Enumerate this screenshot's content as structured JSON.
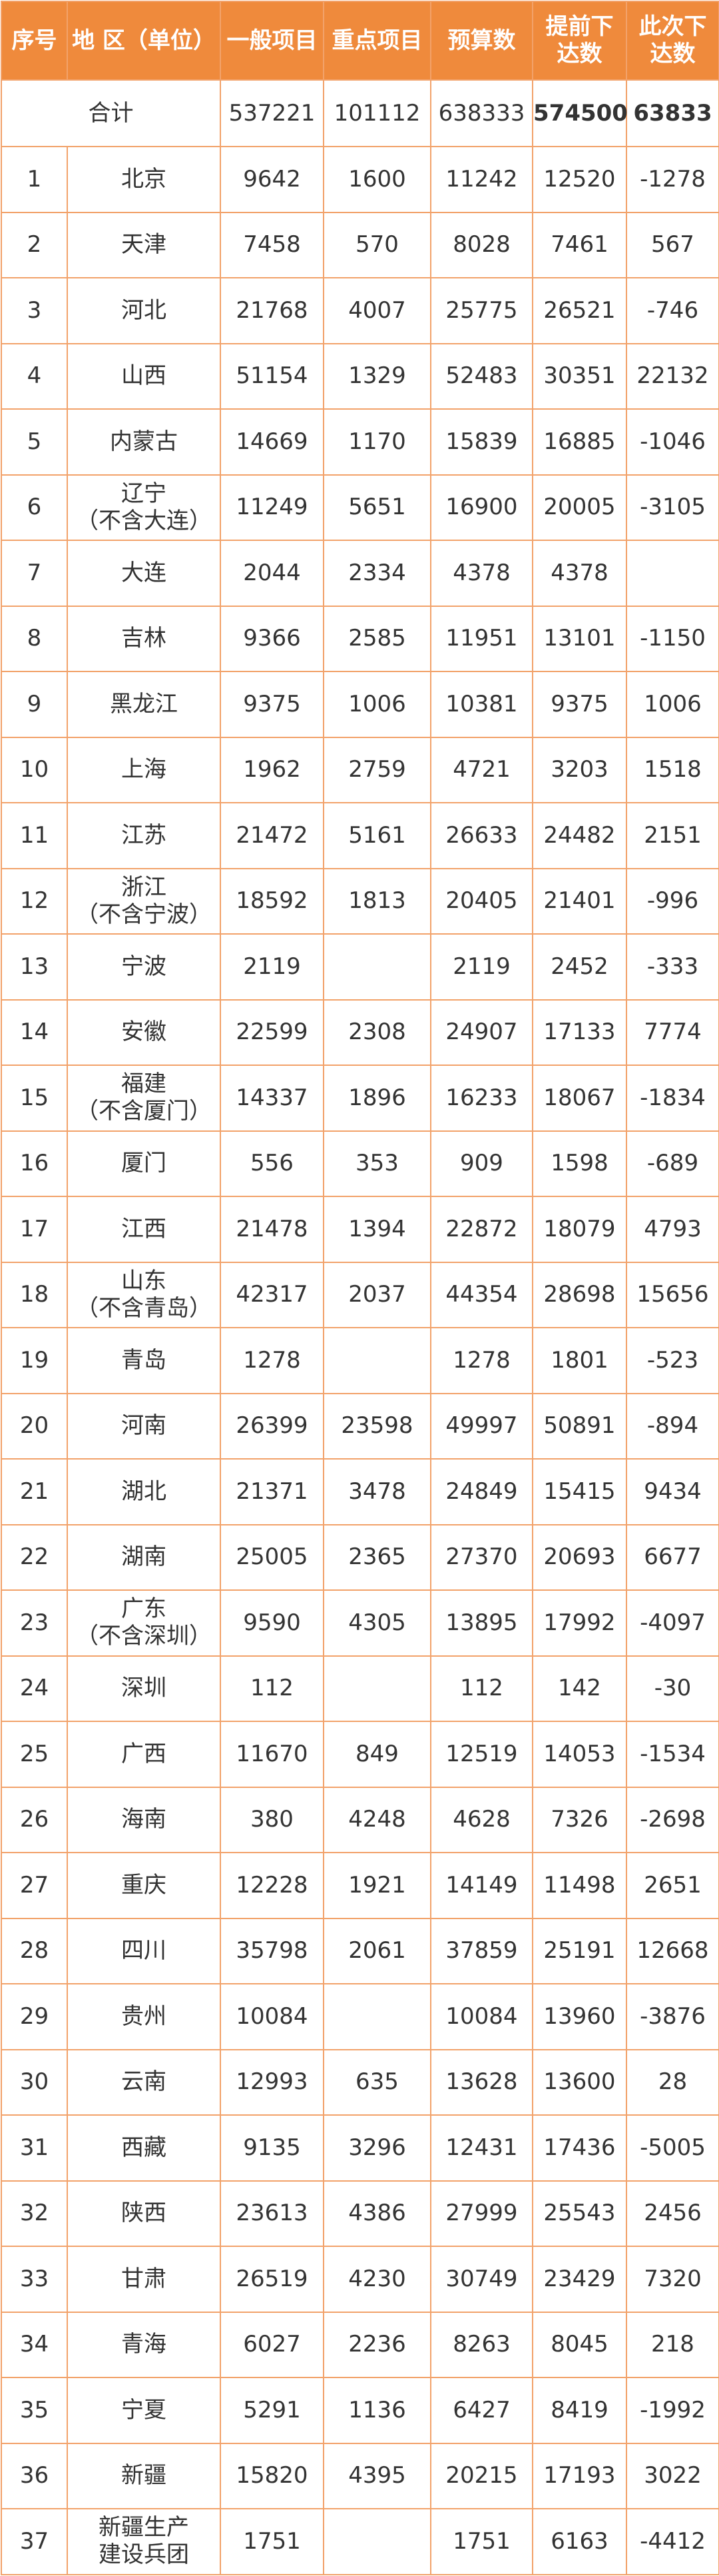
{
  "table": {
    "header": [
      "序号",
      "地 区（单位）",
      "一般项目",
      "重点项目",
      "预算数",
      [
        "提前下",
        "达数"
      ],
      [
        "此次下",
        "达数"
      ]
    ],
    "total": {
      "label": "合计",
      "values": [
        537221,
        101112,
        638333,
        574500,
        63833
      ]
    },
    "rows": [
      [
        1,
        [
          "北京"
        ],
        9642,
        1600,
        11242,
        12520,
        -1278
      ],
      [
        2,
        [
          "天津"
        ],
        7458,
        570,
        8028,
        7461,
        567
      ],
      [
        3,
        [
          "河北"
        ],
        21768,
        4007,
        25775,
        26521,
        -746
      ],
      [
        4,
        [
          "山西"
        ],
        51154,
        1329,
        52483,
        30351,
        22132
      ],
      [
        5,
        [
          "内蒙古"
        ],
        14669,
        1170,
        15839,
        16885,
        -1046
      ],
      [
        6,
        [
          "辽宁",
          "（不含大连）"
        ],
        11249,
        5651,
        16900,
        20005,
        -3105
      ],
      [
        7,
        [
          "大连"
        ],
        2044,
        2334,
        4378,
        4378,
        null
      ],
      [
        8,
        [
          "吉林"
        ],
        9366,
        2585,
        11951,
        13101,
        -1150
      ],
      [
        9,
        [
          "黑龙江"
        ],
        9375,
        1006,
        10381,
        9375,
        1006
      ],
      [
        10,
        [
          "上海"
        ],
        1962,
        2759,
        4721,
        3203,
        1518
      ],
      [
        11,
        [
          "江苏"
        ],
        21472,
        5161,
        26633,
        24482,
        2151
      ],
      [
        12,
        [
          "浙江",
          "（不含宁波）"
        ],
        18592,
        1813,
        20405,
        21401,
        -996
      ],
      [
        13,
        [
          "宁波"
        ],
        2119,
        null,
        2119,
        2452,
        -333
      ],
      [
        14,
        [
          "安徽"
        ],
        22599,
        2308,
        24907,
        17133,
        7774
      ],
      [
        15,
        [
          "福建",
          "（不含厦门）"
        ],
        14337,
        1896,
        16233,
        18067,
        -1834
      ],
      [
        16,
        [
          "厦门"
        ],
        556,
        353,
        909,
        1598,
        -689
      ],
      [
        17,
        [
          "江西"
        ],
        21478,
        1394,
        22872,
        18079,
        4793
      ],
      [
        18,
        [
          "山东",
          "（不含青岛）"
        ],
        42317,
        2037,
        44354,
        28698,
        15656
      ],
      [
        19,
        [
          "青岛"
        ],
        1278,
        null,
        1278,
        1801,
        -523
      ],
      [
        20,
        [
          "河南"
        ],
        26399,
        23598,
        49997,
        50891,
        -894
      ],
      [
        21,
        [
          "湖北"
        ],
        21371,
        3478,
        24849,
        15415,
        9434
      ],
      [
        22,
        [
          "湖南"
        ],
        25005,
        2365,
        27370,
        20693,
        6677
      ],
      [
        23,
        [
          "广东",
          "（不含深圳）"
        ],
        9590,
        4305,
        13895,
        17992,
        -4097
      ],
      [
        24,
        [
          "深圳"
        ],
        112,
        null,
        112,
        142,
        -30
      ],
      [
        25,
        [
          "广西"
        ],
        11670,
        849,
        12519,
        14053,
        -1534
      ],
      [
        26,
        [
          "海南"
        ],
        380,
        4248,
        4628,
        7326,
        -2698
      ],
      [
        27,
        [
          "重庆"
        ],
        12228,
        1921,
        14149,
        11498,
        2651
      ],
      [
        28,
        [
          "四川"
        ],
        35798,
        2061,
        37859,
        25191,
        12668
      ],
      [
        29,
        [
          "贵州"
        ],
        10084,
        null,
        10084,
        13960,
        -3876
      ],
      [
        30,
        [
          "云南"
        ],
        12993,
        635,
        13628,
        13600,
        28
      ],
      [
        31,
        [
          "西藏"
        ],
        9135,
        3296,
        12431,
        17436,
        -5005
      ],
      [
        32,
        [
          "陕西"
        ],
        23613,
        4386,
        27999,
        25543,
        2456
      ],
      [
        33,
        [
          "甘肃"
        ],
        26519,
        4230,
        30749,
        23429,
        7320
      ],
      [
        34,
        [
          "青海"
        ],
        6027,
        2236,
        8263,
        8045,
        218
      ],
      [
        35,
        [
          "宁夏"
        ],
        5291,
        1136,
        6427,
        8419,
        -1992
      ],
      [
        36,
        [
          "新疆"
        ],
        15820,
        4395,
        20215,
        17193,
        3022
      ],
      [
        37,
        [
          "新疆生产",
          "建设兵团"
        ],
        1751,
        null,
        1751,
        6163,
        -4412
      ]
    ]
  }
}
